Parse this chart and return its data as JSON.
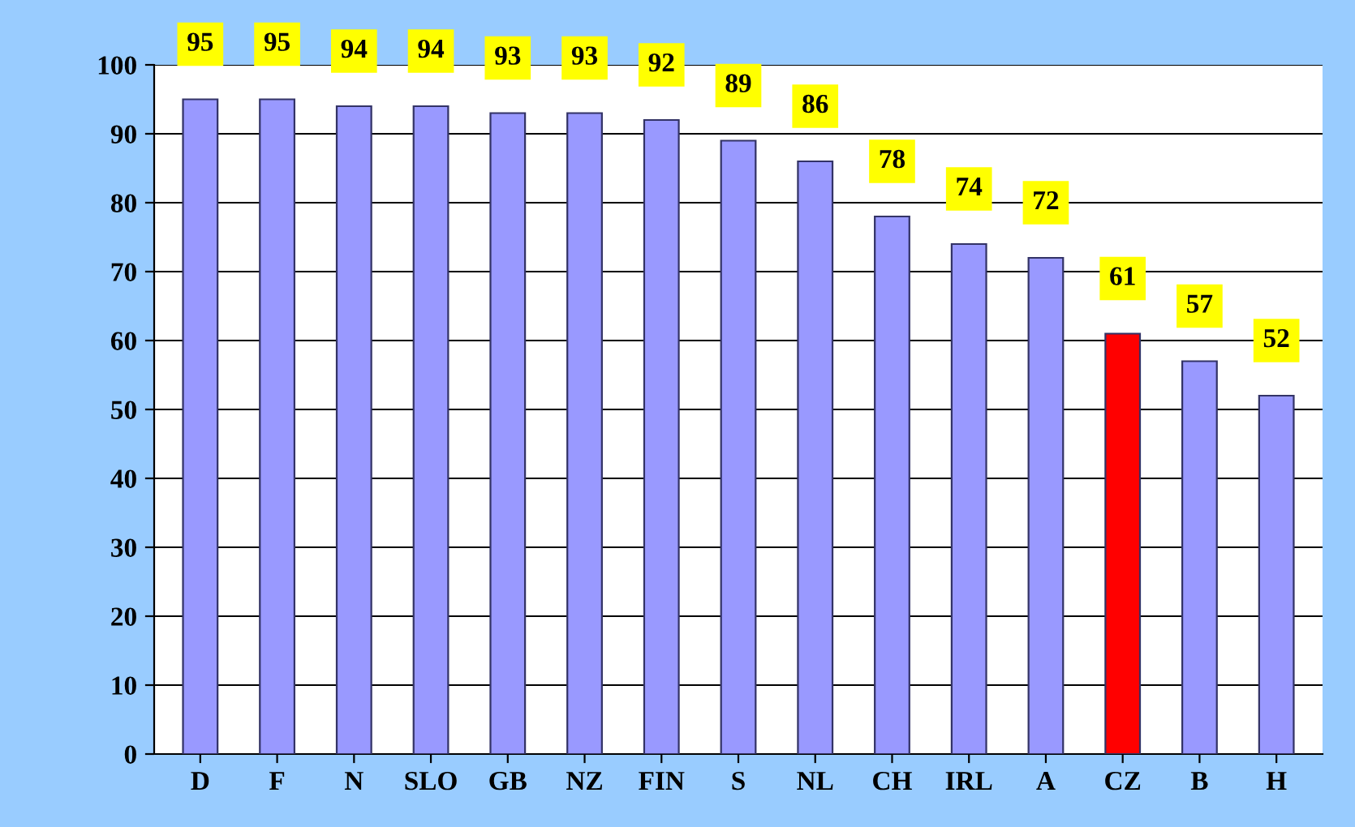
{
  "chart_data": {
    "type": "bar",
    "categories": [
      "D",
      "F",
      "N",
      "SLO",
      "GB",
      "NZ",
      "FIN",
      "S",
      "NL",
      "CH",
      "IRL",
      "A",
      "CZ",
      "B",
      "H"
    ],
    "values": [
      95,
      95,
      94,
      94,
      93,
      93,
      92,
      89,
      86,
      78,
      74,
      72,
      61,
      57,
      52
    ],
    "colors": [
      "#9999ff",
      "#9999ff",
      "#9999ff",
      "#9999ff",
      "#9999ff",
      "#9999ff",
      "#9999ff",
      "#9999ff",
      "#9999ff",
      "#9999ff",
      "#9999ff",
      "#9999ff",
      "#ff0000",
      "#9999ff",
      "#9999ff"
    ],
    "ylim": [
      0,
      100
    ],
    "yticks": [
      0,
      10,
      20,
      30,
      40,
      50,
      60,
      70,
      80,
      90,
      100
    ],
    "grid": "y",
    "data_labels": true
  }
}
